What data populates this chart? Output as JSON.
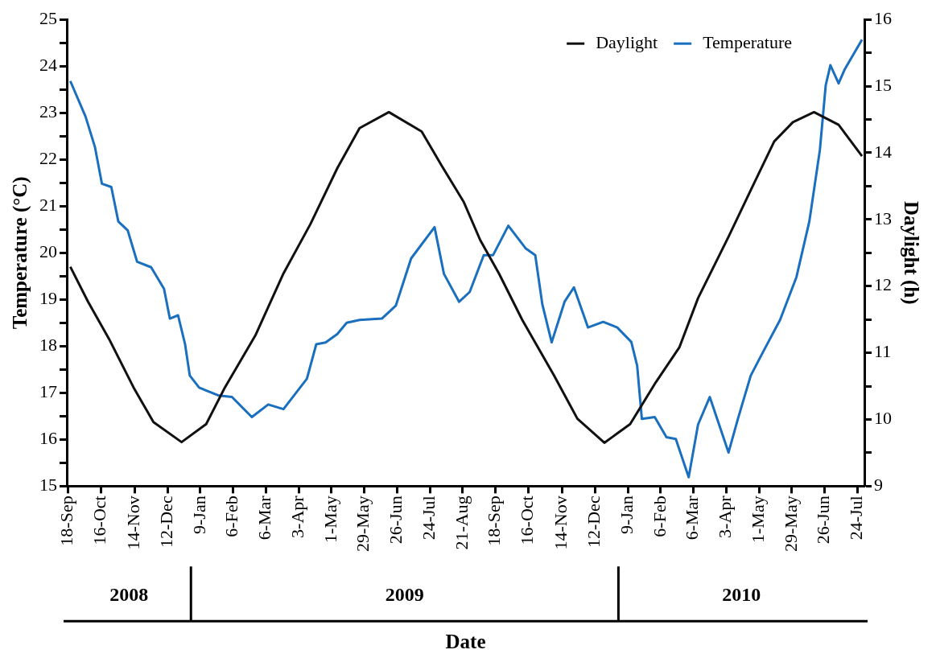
{
  "chart_data": {
    "type": "line",
    "xlabel": "Date",
    "ylabel": "Temperature (°C)",
    "y2label": "Daylight (h)",
    "legend": "top right",
    "xlim": [
      "2008-09-17",
      "2010-07-30"
    ],
    "xticks": [
      {
        "value": "2008-09-18",
        "label": "18-Sep"
      },
      {
        "value": "2008-10-16",
        "label": "16-Oct"
      },
      {
        "value": "2008-11-14",
        "label": "14-Nov"
      },
      {
        "value": "2008-12-12",
        "label": "12-Dec"
      },
      {
        "value": "2009-01-09",
        "label": "9-Jan"
      },
      {
        "value": "2009-02-06",
        "label": "6-Feb"
      },
      {
        "value": "2009-03-06",
        "label": "6-Mar"
      },
      {
        "value": "2009-04-03",
        "label": "3-Apr"
      },
      {
        "value": "2009-05-01",
        "label": "1-May"
      },
      {
        "value": "2009-05-29",
        "label": "29-May"
      },
      {
        "value": "2009-06-26",
        "label": "26-Jun"
      },
      {
        "value": "2009-07-24",
        "label": "24-Jul"
      },
      {
        "value": "2009-08-21",
        "label": "21-Aug"
      },
      {
        "value": "2009-09-18",
        "label": "18-Sep"
      },
      {
        "value": "2009-10-16",
        "label": "16-Oct"
      },
      {
        "value": "2009-11-14",
        "label": "14-Nov"
      },
      {
        "value": "2009-12-12",
        "label": "12-Dec"
      },
      {
        "value": "2010-01-09",
        "label": "9-Jan"
      },
      {
        "value": "2010-02-06",
        "label": "6-Feb"
      },
      {
        "value": "2010-03-06",
        "label": "6-Mar"
      },
      {
        "value": "2010-04-03",
        "label": "3-Apr"
      },
      {
        "value": "2010-05-01",
        "label": "1-May"
      },
      {
        "value": "2010-05-29",
        "label": "29-May"
      },
      {
        "value": "2010-06-26",
        "label": "26-Jun"
      },
      {
        "value": "2010-07-24",
        "label": "24-Jul"
      }
    ],
    "ylim": [
      15,
      25
    ],
    "yticks": [
      15,
      {
        "value": 15.5,
        "label": null
      },
      16,
      {
        "value": 16.5,
        "label": null
      },
      17,
      {
        "value": 17.5,
        "label": null
      },
      18,
      {
        "value": 18.5,
        "label": null
      },
      19,
      {
        "value": 19.5,
        "label": null
      },
      20,
      {
        "value": 20.5,
        "label": null
      },
      21,
      {
        "value": 21.5,
        "label": null
      },
      22,
      {
        "value": 22.5,
        "label": null
      },
      23,
      {
        "value": 23.5,
        "label": null
      },
      24,
      {
        "value": 24.5,
        "label": null
      },
      25
    ],
    "y2lim": [
      9,
      16
    ],
    "y2ticks": [
      9,
      {
        "value": 9.5,
        "label": null
      },
      10,
      {
        "value": 10.5,
        "label": null
      },
      11,
      {
        "value": 11.5,
        "label": null
      },
      12,
      {
        "value": 12.5,
        "label": null
      },
      13,
      {
        "value": 13.5,
        "label": null
      },
      14,
      {
        "value": 14.5,
        "label": null
      },
      15,
      {
        "value": 15.5,
        "label": null
      },
      16
    ],
    "annotations": [
      "2008",
      "2009",
      "2010"
    ],
    "series": [
      {
        "name": "Daylight",
        "color": "#111111",
        "axis": "y2",
        "x": [
          "2008-09-20",
          "2008-10-05",
          "2008-10-23",
          "2008-11-13",
          "2008-11-30",
          "2008-12-24",
          "2009-01-14",
          "2009-01-30",
          "2009-02-25",
          "2009-03-21",
          "2009-04-13",
          "2009-05-06",
          "2009-05-25",
          "2009-06-19",
          "2009-07-17",
          "2009-08-03",
          "2009-08-22",
          "2009-09-05",
          "2009-09-21",
          "2009-10-11",
          "2009-11-07",
          "2009-11-27",
          "2009-12-20",
          "2010-01-11",
          "2010-02-02",
          "2010-02-22",
          "2010-03-10",
          "2010-04-05",
          "2010-04-24",
          "2010-05-14",
          "2010-05-30",
          "2010-06-17",
          "2010-07-08",
          "2010-07-28"
        ],
        "values": [
          12.29,
          11.77,
          11.21,
          10.48,
          9.96,
          9.66,
          9.93,
          10.48,
          11.26,
          12.19,
          12.93,
          13.77,
          14.37,
          14.61,
          14.32,
          13.81,
          13.26,
          12.69,
          12.19,
          11.49,
          10.66,
          10.01,
          9.65,
          9.93,
          10.56,
          11.08,
          11.82,
          12.74,
          13.44,
          14.17,
          14.46,
          14.61,
          14.42,
          13.95
        ]
      },
      {
        "name": "Temperature",
        "color": "#1a6fbf",
        "x": [
          "2008-09-20",
          "2008-10-03",
          "2008-10-11",
          "2008-10-17",
          "2008-10-25",
          "2008-10-31",
          "2008-11-08",
          "2008-11-16",
          "2008-11-28",
          "2008-12-09",
          "2008-12-14",
          "2008-12-21",
          "2008-12-27",
          "2008-12-31",
          "2009-01-08",
          "2009-01-25",
          "2009-02-05",
          "2009-02-22",
          "2009-03-08",
          "2009-03-21",
          "2009-04-10",
          "2009-04-18",
          "2009-04-26",
          "2009-05-06",
          "2009-05-14",
          "2009-05-25",
          "2009-06-13",
          "2009-06-25",
          "2009-07-08",
          "2009-07-28",
          "2009-08-05",
          "2009-08-18",
          "2009-08-27",
          "2009-09-08",
          "2009-09-16",
          "2009-09-29",
          "2009-10-14",
          "2009-10-22",
          "2009-10-28",
          "2009-11-05",
          "2009-11-16",
          "2009-11-24",
          "2009-12-06",
          "2009-12-19",
          "2009-12-31",
          "2010-01-12",
          "2010-01-17",
          "2010-01-21",
          "2010-02-01",
          "2010-02-11",
          "2010-02-19",
          "2010-03-02",
          "2010-03-10",
          "2010-03-20",
          "2010-04-05",
          "2010-04-13",
          "2010-04-24",
          "2010-05-05",
          "2010-05-19",
          "2010-06-02",
          "2010-06-13",
          "2010-06-22",
          "2010-06-27",
          "2010-07-01",
          "2010-07-08",
          "2010-07-13",
          "2010-07-28"
        ],
        "values": [
          23.68,
          22.92,
          22.27,
          21.48,
          21.41,
          20.67,
          20.48,
          19.81,
          19.69,
          19.23,
          18.59,
          18.66,
          18.04,
          17.37,
          17.11,
          16.94,
          16.91,
          16.48,
          16.75,
          16.65,
          17.3,
          18.04,
          18.08,
          18.26,
          18.5,
          18.56,
          18.59,
          18.87,
          19.88,
          20.55,
          19.55,
          18.95,
          19.16,
          19.95,
          19.95,
          20.58,
          20.09,
          19.95,
          18.9,
          18.08,
          18.95,
          19.26,
          18.4,
          18.52,
          18.4,
          18.09,
          17.58,
          16.44,
          16.48,
          16.05,
          16.01,
          15.19,
          16.32,
          16.91,
          15.72,
          16.44,
          17.37,
          17.9,
          18.56,
          19.48,
          20.67,
          22.2,
          23.59,
          24.02,
          23.63,
          23.92,
          24.57
        ]
      }
    ]
  }
}
